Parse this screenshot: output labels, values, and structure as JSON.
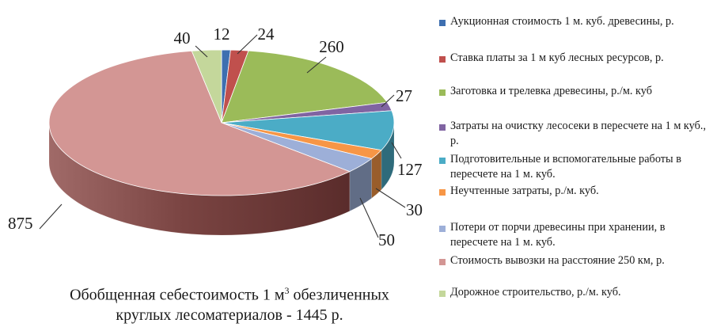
{
  "chart_data": {
    "type": "pie",
    "style": "3d",
    "categories": [
      "Аукционная стоимость 1 м. куб. древесины, р.",
      "Ставка платы за 1 м куб лесных ресурсов, р.",
      "Заготовка и трелевка древесины, р./м. куб",
      "Затраты на очистку лесосеки в пересчете на 1 м куб., р.",
      "Подготовительные и вспомогательные работы в пересчете на 1 м. куб.",
      "Неучтенные затраты, р./м. куб.",
      "Потери от порчи древесины при хранении, в пересчете на 1 м. куб.",
      "Стоимость вывозки на расстояние 250 км, р.",
      "Дорожное строительство, р./м. куб."
    ],
    "values": [
      12,
      24,
      260,
      27,
      127,
      30,
      50,
      875,
      40
    ],
    "data_labels": [
      "12",
      "24",
      "260",
      "27",
      "127",
      "30",
      "50",
      "875",
      "40"
    ],
    "colors": [
      "#3e6fb0",
      "#c0504d",
      "#9bbb59",
      "#8064a2",
      "#4bacc6",
      "#f79646",
      "#9dafd8",
      "#d39694",
      "#c4d79b"
    ],
    "caption_part1": "Обобщенная себестоимость 1 м",
    "caption_sup": "3",
    "caption_part2": " обезличенных",
    "caption_line2": "круглых лесоматериалов - 1445 р.",
    "legend_position": "right"
  }
}
